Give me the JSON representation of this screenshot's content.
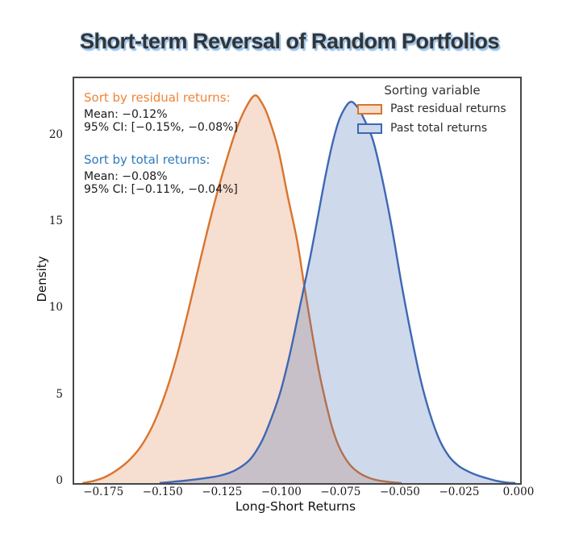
{
  "chart_data": {
    "type": "area",
    "subtype": "kde-density",
    "title": "Short-term Reversal of Random Portfolios",
    "title_color": "#343434",
    "title_halo_color": "#9dc4ea",
    "xlabel": "Long-Short Returns",
    "ylabel": "Density",
    "xlim": [
      -0.188,
      0
    ],
    "ylim": [
      0,
      23.4
    ],
    "grid": false,
    "axis_color": "#474747",
    "x_ticks": [
      {
        "value": -0.175,
        "label": "−0.175"
      },
      {
        "value": -0.15,
        "label": "−0.150"
      },
      {
        "value": -0.125,
        "label": "−0.125"
      },
      {
        "value": -0.1,
        "label": "−0.100"
      },
      {
        "value": -0.075,
        "label": "−0.075"
      },
      {
        "value": -0.05,
        "label": "−0.050"
      },
      {
        "value": -0.025,
        "label": "−0.025"
      },
      {
        "value": 0.0,
        "label": "0.000"
      }
    ],
    "y_ticks": [
      {
        "value": 0,
        "label": "0"
      },
      {
        "value": 5,
        "label": "5"
      },
      {
        "value": 10,
        "label": "10"
      },
      {
        "value": 15,
        "label": "15"
      },
      {
        "value": 20,
        "label": "20"
      }
    ],
    "legend": {
      "title": "Sorting variable",
      "position": "upper right",
      "entries": [
        {
          "label": "Past residual returns",
          "line_color": "#d9742e",
          "fill_color": "#f6ddc8"
        },
        {
          "label": "Past total returns",
          "line_color": "#3e68b2",
          "fill_color": "#ccd7ec"
        }
      ]
    },
    "series": [
      {
        "name": "Past residual returns",
        "line_color": "#d9742e",
        "fill_color": "rgba(221,132,82,0.27)",
        "peak": {
          "x": -0.112,
          "density": 22.4
        },
        "points": [
          [
            -0.1845,
            0
          ],
          [
            -0.18,
            0.12
          ],
          [
            -0.175,
            0.35
          ],
          [
            -0.17,
            0.75
          ],
          [
            -0.165,
            1.3
          ],
          [
            -0.16,
            2.1
          ],
          [
            -0.155,
            3.3
          ],
          [
            -0.15,
            5.0
          ],
          [
            -0.145,
            7.2
          ],
          [
            -0.14,
            9.9
          ],
          [
            -0.135,
            12.8
          ],
          [
            -0.13,
            15.6
          ],
          [
            -0.125,
            18.1
          ],
          [
            -0.12,
            20.3
          ],
          [
            -0.116,
            21.6
          ],
          [
            -0.112,
            22.4
          ],
          [
            -0.109,
            22.0
          ],
          [
            -0.106,
            21.1
          ],
          [
            -0.102,
            19.3
          ],
          [
            -0.098,
            16.6
          ],
          [
            -0.094,
            14.0
          ],
          [
            -0.091,
            11.4
          ],
          [
            -0.088,
            8.9
          ],
          [
            -0.085,
            6.6
          ],
          [
            -0.082,
            4.7
          ],
          [
            -0.079,
            3.1
          ],
          [
            -0.076,
            2.0
          ],
          [
            -0.072,
            1.1
          ],
          [
            -0.068,
            0.6
          ],
          [
            -0.064,
            0.32
          ],
          [
            -0.06,
            0.16
          ],
          [
            -0.055,
            0.06
          ],
          [
            -0.05,
            0
          ]
        ]
      },
      {
        "name": "Past total returns",
        "line_color": "#3e68b2",
        "fill_color": "rgba(62,104,178,0.25)",
        "peak": {
          "x": -0.072,
          "density": 22.0
        },
        "points": [
          [
            -0.152,
            0
          ],
          [
            -0.146,
            0.08
          ],
          [
            -0.14,
            0.16
          ],
          [
            -0.133,
            0.28
          ],
          [
            -0.126,
            0.45
          ],
          [
            -0.12,
            0.75
          ],
          [
            -0.114,
            1.35
          ],
          [
            -0.109,
            2.4
          ],
          [
            -0.105,
            3.7
          ],
          [
            -0.101,
            5.3
          ],
          [
            -0.097,
            7.5
          ],
          [
            -0.093,
            10.1
          ],
          [
            -0.091,
            11.4
          ],
          [
            -0.088,
            13.4
          ],
          [
            -0.085,
            15.6
          ],
          [
            -0.082,
            17.8
          ],
          [
            -0.079,
            19.7
          ],
          [
            -0.076,
            21.1
          ],
          [
            -0.072,
            22.0
          ],
          [
            -0.069,
            21.8
          ],
          [
            -0.066,
            21.1
          ],
          [
            -0.062,
            19.8
          ],
          [
            -0.058,
            17.5
          ],
          [
            -0.054,
            14.7
          ],
          [
            -0.05,
            11.5
          ],
          [
            -0.046,
            8.6
          ],
          [
            -0.042,
            6.0
          ],
          [
            -0.038,
            4.0
          ],
          [
            -0.034,
            2.5
          ],
          [
            -0.03,
            1.55
          ],
          [
            -0.026,
            1.0
          ],
          [
            -0.022,
            0.68
          ],
          [
            -0.018,
            0.45
          ],
          [
            -0.014,
            0.28
          ],
          [
            -0.01,
            0.13
          ],
          [
            -0.006,
            0.04
          ],
          [
            -0.002,
            0
          ]
        ]
      }
    ],
    "annotations": [
      {
        "heading": "Sort by residual returns:",
        "heading_color": "#f08437",
        "mean_line": "Mean: −0.12%",
        "ci_line": "95% CI: [−0.15%, −0.08%]"
      },
      {
        "heading": "Sort by total returns:",
        "heading_color": "#2e79bd",
        "mean_line": "Mean: −0.08%",
        "ci_line": "95% CI: [−0.11%, −0.04%]"
      }
    ]
  }
}
